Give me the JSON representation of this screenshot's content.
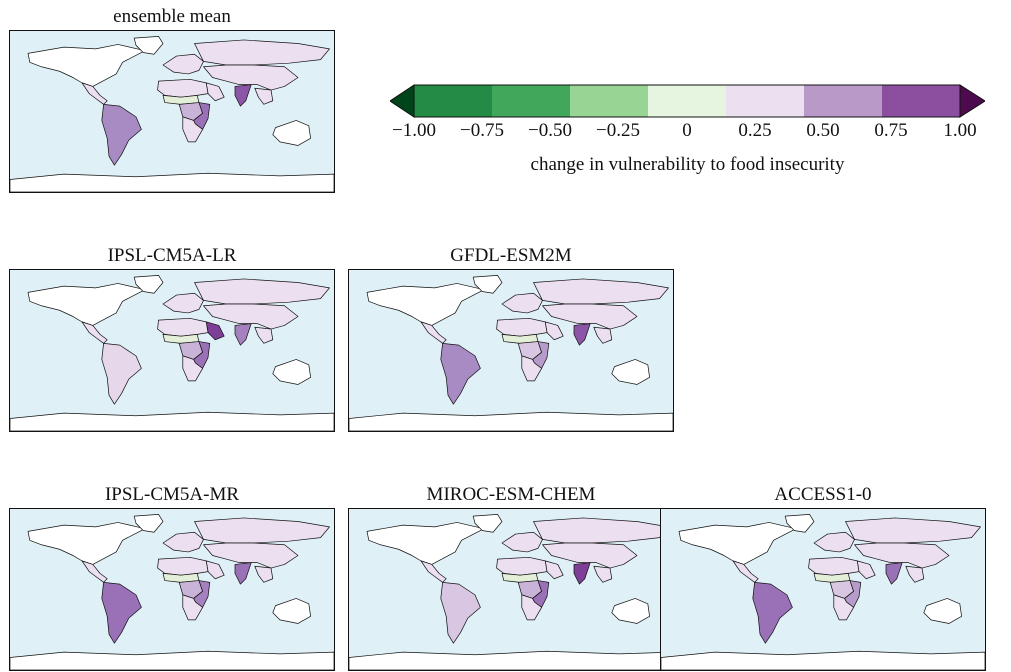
{
  "panels": [
    {
      "title": "ensemble mean",
      "highlight": {
        "south_america": "#a98bc4",
        "south_asia": "#8c55a8",
        "central_africa": "#c9b3d8",
        "sahel": "#e3efd9",
        "east_africa": "#9a71b7"
      }
    },
    {
      "title": "IPSL-CM5A-LR",
      "highlight": {
        "south_america": "#e6d7ea",
        "south_asia": "#a581c0",
        "central_africa": "#c9b3d8",
        "sahel": "#e3efd9",
        "east_africa": "#9a71b7",
        "arabia": "#7d3f98"
      }
    },
    {
      "title": "GFDL-ESM2M",
      "highlight": {
        "south_america": "#a98bc4",
        "south_asia": "#8c55a8",
        "central_africa": "#d8c6e2",
        "sahel": "#e3efd9",
        "east_africa": "#b69bcb"
      }
    },
    {
      "title": "IPSL-CM5A-MR",
      "highlight": {
        "south_america": "#9a71b7",
        "south_asia": "#9a71b7",
        "central_africa": "#c9b3d8",
        "sahel": "#e3efd9",
        "east_africa": "#a581c0"
      }
    },
    {
      "title": "MIROC-ESM-CHEM",
      "highlight": {
        "south_america": "#d8c6e2",
        "south_asia": "#7d3f98",
        "central_africa": "#c9b3d8",
        "sahel": "#e3efd9",
        "east_africa": "#9a71b7"
      }
    },
    {
      "title": "ACCESS1-0",
      "highlight": {
        "south_america": "#9a71b7",
        "south_asia": "#9a71b7",
        "central_africa": "#d8c6e2",
        "sahel": "#e3efd9",
        "east_africa": "#b69bcb"
      }
    }
  ],
  "colorbar": {
    "colors": [
      "#00441b",
      "#238b45",
      "#41a85b",
      "#98d594",
      "#e5f5e0",
      "#ecdff0",
      "#b899c8",
      "#8c4fa0",
      "#4d0a4f"
    ],
    "ticks": [
      "−1.00",
      "−0.75",
      "−0.50",
      "−0.25",
      "0",
      "0.25",
      "0.50",
      "0.75",
      "1.00"
    ],
    "label": "change in vulnerability to food insecurity"
  },
  "colors": {
    "ocean": "#dff0f6",
    "land_default": "#ecdff0",
    "no_data": "#ffffff",
    "border": "#111111"
  }
}
